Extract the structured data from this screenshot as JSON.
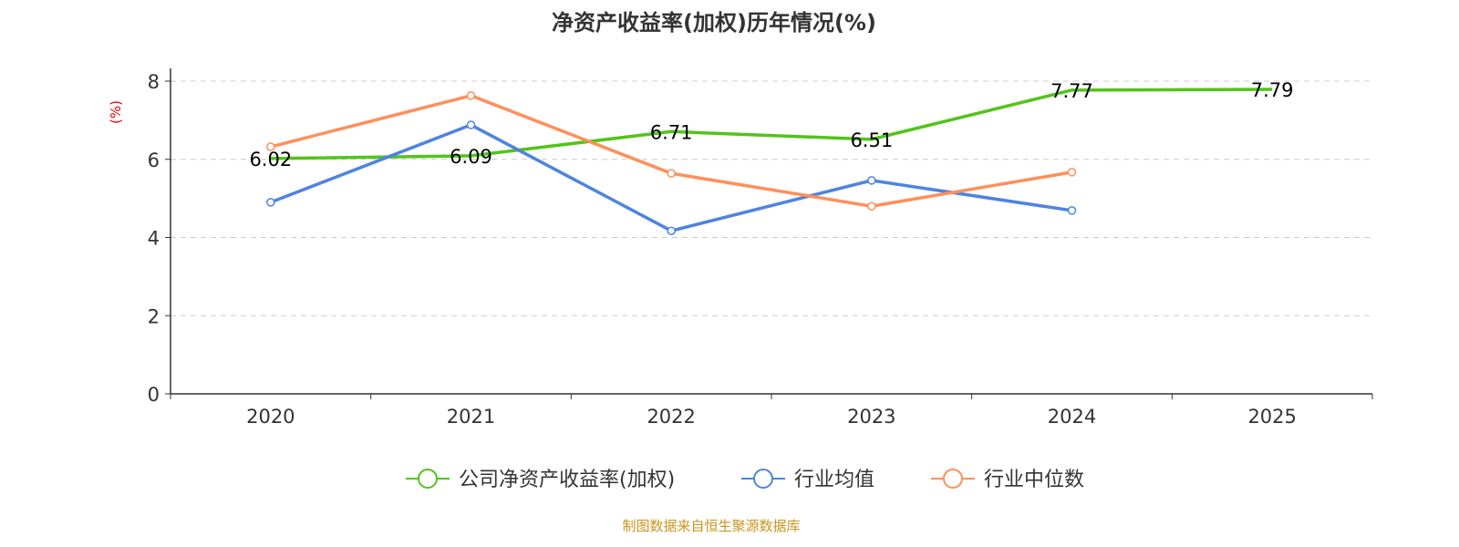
{
  "chart_data": {
    "type": "line",
    "title": "净资产收益率(加权)历年情况(%)",
    "ylabel": "(%)",
    "categories": [
      "2020",
      "2021",
      "2022",
      "2023",
      "2024",
      "2025"
    ],
    "ylim": [
      0,
      8
    ],
    "yticks": [
      0,
      2,
      4,
      6,
      8
    ],
    "grid": true,
    "legend_position": "bottom",
    "series": [
      {
        "name": "公司净资产收益率(加权)",
        "color": "#52c41a",
        "values": [
          6.02,
          6.09,
          6.71,
          6.51,
          7.77,
          7.79
        ],
        "labels": true,
        "markers": false
      },
      {
        "name": "行业均值",
        "color": "#4e83e0",
        "values": [
          4.9,
          6.88,
          4.17,
          5.46,
          4.69,
          null
        ],
        "labels": false,
        "markers": true
      },
      {
        "name": "行业中位数",
        "color": "#ff8f59",
        "values": [
          6.32,
          7.63,
          5.64,
          4.8,
          5.67,
          null
        ],
        "labels": false,
        "markers": true
      }
    ]
  },
  "footer": "制图数据来自恒生聚源数据库"
}
